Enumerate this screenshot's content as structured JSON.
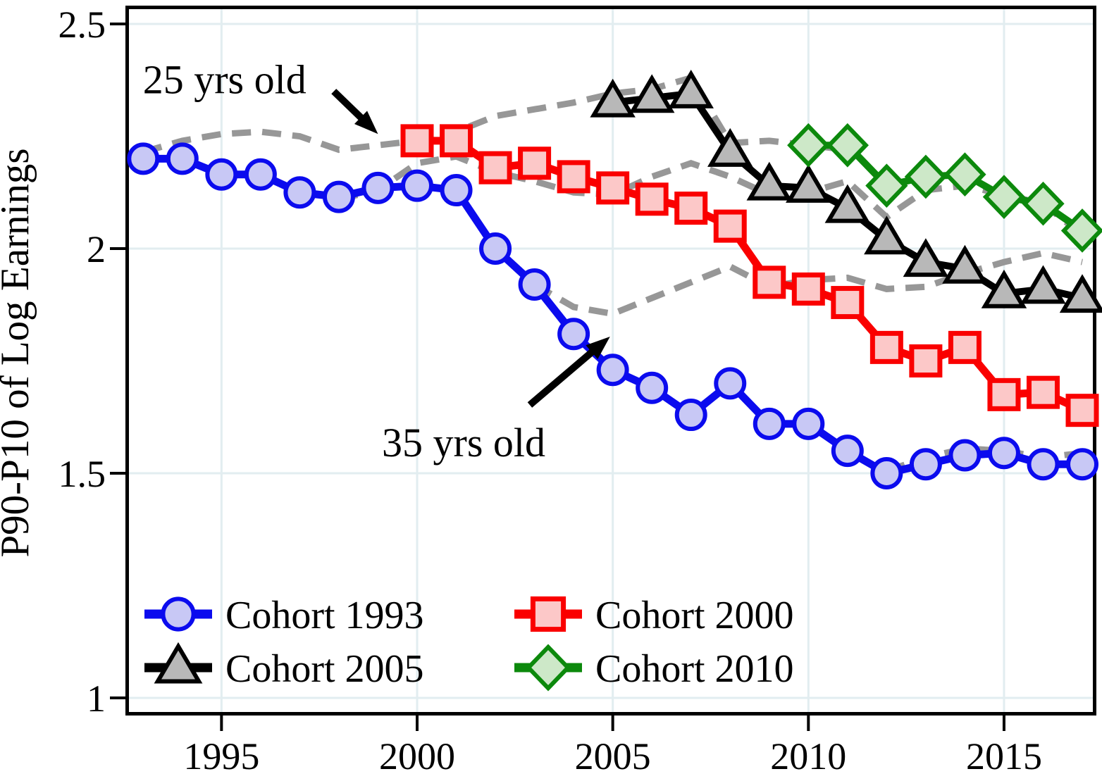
{
  "chart_data": {
    "type": "line",
    "title": "",
    "xlabel": "",
    "ylabel": "P90-P10 of Log Earnings",
    "xlim": [
      1992.55,
      2017.35
    ],
    "ylim": [
      0.96,
      2.54
    ],
    "grid": true,
    "grid_color": "#e2edf0",
    "xticks": [
      {
        "value": 1995,
        "label": "1995"
      },
      {
        "value": 2000,
        "label": "2000"
      },
      {
        "value": 2005,
        "label": "2005"
      },
      {
        "value": 2010,
        "label": "2010"
      },
      {
        "value": 2015,
        "label": "2015"
      }
    ],
    "yticks": [
      {
        "value": 1,
        "label": "1"
      },
      {
        "value": 1.5,
        "label": "1.5"
      },
      {
        "value": 2,
        "label": "2"
      },
      {
        "value": 2.5,
        "label": "2.5"
      }
    ],
    "series": [
      {
        "id": "cohort-1993",
        "name": "Cohort 1993",
        "marker": "circle",
        "color": "#0b0bee",
        "marker_fill": "#c8c8f5",
        "line_width": 11,
        "years": [
          1993,
          1994,
          1995,
          1996,
          1997,
          1998,
          1999,
          2000,
          2001,
          2002,
          2003,
          2004,
          2005,
          2006,
          2007,
          2008,
          2009,
          2010,
          2011,
          2012,
          2013,
          2014,
          2015,
          2016,
          2017
        ],
        "values": [
          2.2,
          2.2,
          2.165,
          2.165,
          2.125,
          2.115,
          2.135,
          2.14,
          2.13,
          2.0,
          1.92,
          1.81,
          1.73,
          1.69,
          1.63,
          1.7,
          1.61,
          1.61,
          1.55,
          1.5,
          1.52,
          1.54,
          1.545,
          1.52,
          1.52
        ]
      },
      {
        "id": "cohort-2000",
        "name": "Cohort 2000",
        "marker": "square",
        "color": "#fa0000",
        "marker_fill": "#fcc8c8",
        "line_width": 11,
        "years": [
          2000,
          2001,
          2002,
          2003,
          2004,
          2005,
          2006,
          2007,
          2008,
          2009,
          2010,
          2011,
          2012,
          2013,
          2014,
          2015,
          2016,
          2017
        ],
        "values": [
          2.24,
          2.24,
          2.18,
          2.19,
          2.16,
          2.135,
          2.11,
          2.09,
          2.05,
          1.925,
          1.91,
          1.88,
          1.78,
          1.75,
          1.78,
          1.675,
          1.68,
          1.64
        ]
      },
      {
        "id": "cohort-2005",
        "name": "Cohort 2005",
        "marker": "triangle",
        "color": "#000000",
        "marker_fill": "#b8b8b8",
        "line_width": 10,
        "years": [
          2005,
          2006,
          2007,
          2008,
          2009,
          2010,
          2011,
          2012,
          2013,
          2014,
          2015,
          2016,
          2017
        ],
        "values": [
          2.325,
          2.335,
          2.345,
          2.215,
          2.14,
          2.135,
          2.09,
          2.02,
          1.97,
          1.955,
          1.9,
          1.91,
          1.89
        ]
      },
      {
        "id": "cohort-2010",
        "name": "Cohort 2010",
        "marker": "diamond",
        "color": "#0c890c",
        "marker_fill": "#cde8c8",
        "line_width": 10,
        "years": [
          2010,
          2011,
          2012,
          2013,
          2014,
          2015,
          2016,
          2017
        ],
        "values": [
          2.23,
          2.23,
          2.14,
          2.16,
          2.165,
          2.115,
          2.1,
          2.04
        ]
      }
    ],
    "age_profiles": [
      {
        "id": "age-25",
        "name": "25 yrs old",
        "labeled": true,
        "color": "#979797",
        "style": "dashed",
        "years": [
          1993,
          1994,
          1995,
          1996,
          1997,
          1998,
          1999,
          2000,
          2001,
          2002,
          2003,
          2004,
          2005,
          2006,
          2007,
          2008,
          2009,
          2010,
          2011
        ],
        "values": [
          2.215,
          2.24,
          2.255,
          2.26,
          2.25,
          2.22,
          2.23,
          2.24,
          2.26,
          2.295,
          2.31,
          2.325,
          2.345,
          2.355,
          2.38,
          2.235,
          2.24,
          2.23,
          2.22
        ]
      },
      {
        "id": "age-35",
        "name": "35 yrs old",
        "labeled": true,
        "color": "#979797",
        "style": "dashed",
        "years": [
          2003,
          2004,
          2005,
          2006,
          2007,
          2008,
          2009,
          2010,
          2011,
          2012,
          2013,
          2014,
          2015,
          2016,
          2017
        ],
        "values": [
          1.92,
          1.87,
          1.855,
          1.89,
          1.925,
          1.96,
          1.915,
          1.93,
          1.935,
          1.91,
          1.915,
          1.945,
          1.97,
          1.99,
          1.97
        ]
      },
      {
        "id": "age-profile-middle",
        "name": "",
        "labeled": false,
        "color": "#979797",
        "style": "dashed",
        "years": [
          1998,
          1999,
          2000,
          2001,
          2002,
          2003,
          2004,
          2005,
          2006,
          2007,
          2008,
          2009,
          2010,
          2011,
          2012,
          2013,
          2014,
          2015,
          2016,
          2017
        ],
        "values": [
          2.11,
          2.13,
          2.19,
          2.205,
          2.17,
          2.15,
          2.125,
          2.12,
          2.16,
          2.19,
          2.16,
          2.12,
          2.125,
          2.15,
          2.07,
          2.13,
          2.14,
          2.12,
          2.1,
          2.03
        ]
      },
      {
        "id": "age-profile-low",
        "name": "",
        "labeled": false,
        "color": "#979797",
        "style": "dashed",
        "years": [
          2012,
          2013,
          2014,
          2015,
          2016,
          2017
        ],
        "values": [
          1.505,
          1.535,
          1.555,
          1.55,
          1.535,
          1.545
        ]
      }
    ],
    "legend": {
      "position": "bottom-left",
      "items": [
        {
          "label": "Cohort 1993",
          "series": "cohort-1993"
        },
        {
          "label": "Cohort 2000",
          "series": "cohort-2000"
        },
        {
          "label": "Cohort 2005",
          "series": "cohort-2005"
        },
        {
          "label": "Cohort 2010",
          "series": "cohort-2010"
        }
      ]
    },
    "annotations": [
      {
        "id": "age25-callout",
        "text": "25 yrs old",
        "x": 1992.99,
        "y": 2.346,
        "arrow": {
          "x1": 1997.87,
          "y1": 2.35,
          "x2": 1999.0,
          "y2": 2.255
        }
      },
      {
        "id": "age35-callout",
        "text": "35 yrs old",
        "x": 1999.1,
        "y": 1.538,
        "arrow": {
          "x1": 2002.88,
          "y1": 1.652,
          "x2": 2004.93,
          "y2": 1.804
        }
      }
    ]
  }
}
